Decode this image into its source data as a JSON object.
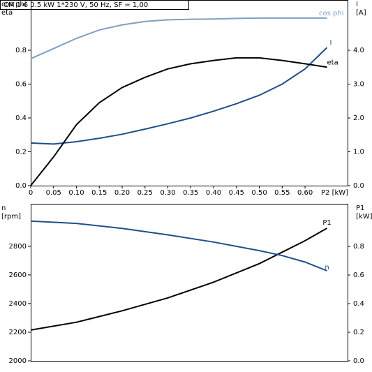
{
  "chart_data": [
    {
      "type": "line",
      "title": "CM 1-6   0.5 kW   1*230 V, 50 Hz, SF = 1,00",
      "ylabel": [
        "cos phi",
        "eta"
      ],
      "y2label": [
        "I",
        "[A]"
      ],
      "xlabel": "P2 [kW]",
      "xlim": [
        0,
        0.693
      ],
      "xticks": [
        0,
        0.05,
        {
          "value": 0.1,
          "label": "0.10"
        },
        0.15,
        {
          "value": 0.2,
          "label": "0.20"
        },
        0.25,
        {
          "value": 0.3,
          "label": "0.30"
        },
        0.35,
        {
          "value": 0.4,
          "label": "0.40"
        },
        0.45,
        {
          "value": 0.5,
          "label": "0.50"
        },
        0.55,
        {
          "value": 0.6,
          "label": "0.60"
        }
      ],
      "ylim": [
        0,
        1.097
      ],
      "yticks": [
        {
          "value": 0,
          "label": "0.0"
        },
        0.2,
        0.4,
        0.6,
        0.8
      ],
      "y2lim": [
        0,
        5.485
      ],
      "y2ticks": [
        {
          "value": 0,
          "label": "0.0"
        },
        {
          "value": 1,
          "label": "1.0"
        },
        {
          "value": 2,
          "label": "2.0"
        },
        {
          "value": 3,
          "label": "3.0"
        },
        {
          "value": 4,
          "label": "4.0"
        }
      ],
      "x": [
        0,
        0.05,
        0.1,
        0.15,
        0.2,
        0.25,
        0.3,
        0.35,
        0.4,
        0.45,
        0.5,
        0.55,
        0.6,
        0.648
      ],
      "series": [
        {
          "name": "cos phi",
          "color": "#7f9fc2",
          "values": [
            0.75,
            0.81,
            0.87,
            0.92,
            0.95,
            0.97,
            0.98,
            0.983,
            0.985,
            0.988,
            0.99,
            0.99,
            0.99,
            0.99
          ]
        },
        {
          "name": "I",
          "color": "#1f4e8c",
          "axis": "y2",
          "values": [
            1.26,
            1.23,
            1.3,
            1.4,
            1.52,
            1.67,
            1.83,
            2.0,
            2.2,
            2.42,
            2.67,
            3.0,
            3.45,
            4.08
          ]
        },
        {
          "name": "eta",
          "color": "#000000",
          "values": [
            0,
            0.17,
            0.36,
            0.49,
            0.58,
            0.64,
            0.69,
            0.72,
            0.74,
            0.755,
            0.755,
            0.74,
            0.72,
            0.7
          ]
        }
      ]
    },
    {
      "type": "line",
      "ylabel": [
        "n",
        "[rpm]"
      ],
      "y2label": [
        "P1",
        "[kW]"
      ],
      "xlim": [
        0,
        0.693
      ],
      "ylim": [
        2000,
        3097
      ],
      "yticks": [
        2000,
        2200,
        2400,
        2600,
        2800
      ],
      "y2lim": [
        0,
        1.098
      ],
      "y2ticks": [
        {
          "value": 0,
          "label": "0.0"
        },
        0.2,
        0.4,
        0.6,
        0.8
      ],
      "x": [
        0,
        0.1,
        0.2,
        0.3,
        0.4,
        0.5,
        0.55,
        0.6,
        0.648
      ],
      "series": [
        {
          "name": "P1",
          "color": "#000000",
          "axis": "y2",
          "values": [
            0.215,
            0.27,
            0.35,
            0.44,
            0.55,
            0.68,
            0.76,
            0.84,
            0.927
          ]
        },
        {
          "name": "n",
          "color": "#1f4e8c",
          "values": [
            2976,
            2960,
            2925,
            2880,
            2830,
            2770,
            2735,
            2690,
            2629
          ]
        }
      ]
    }
  ]
}
